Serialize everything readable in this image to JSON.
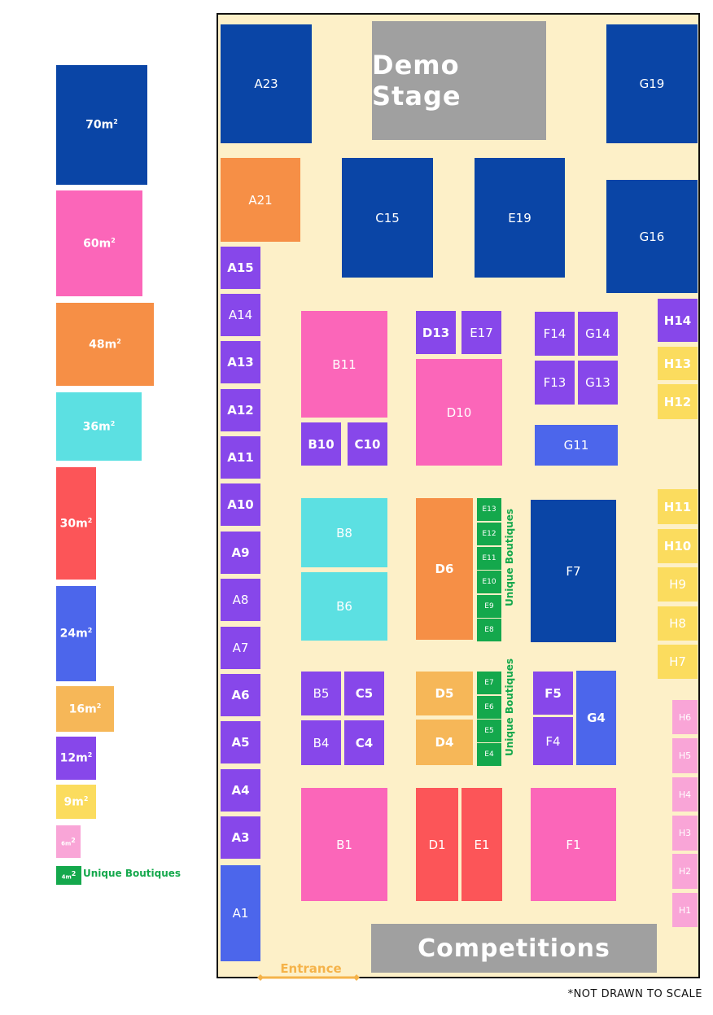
{
  "colors": {
    "navy": "#0a45a6",
    "orange": "#f68f46",
    "purple": "#8747ea",
    "pink": "#fb66b9",
    "cyan": "#5ce0e2",
    "red": "#fc5558",
    "blue": "#4c66eb",
    "lightorange": "#f6b758",
    "yellow": "#fbdc5e",
    "lightpink": "#f9a5d7",
    "green": "#14a84c",
    "gray": "#a0a0a0",
    "floor": "#fdf0c8"
  },
  "legend": [
    {
      "label": "70m",
      "sup": "2",
      "color": "#0a45a6"
    },
    {
      "label": "60m",
      "sup": "2",
      "color": "#fb66b9"
    },
    {
      "label": "48m",
      "sup": "2",
      "color": "#f68f46"
    },
    {
      "label": "36m",
      "sup": "2",
      "color": "#5ce0e2"
    },
    {
      "label": "30m",
      "sup": "2",
      "color": "#fc5558"
    },
    {
      "label": "24m",
      "sup": "2",
      "color": "#4c66eb"
    },
    {
      "label": "16m",
      "sup": "2",
      "color": "#f6b758"
    },
    {
      "label": "12m",
      "sup": "2",
      "color": "#8747ea"
    },
    {
      "label": "9m",
      "sup": "2",
      "color": "#fbdc5e"
    },
    {
      "label": "6m",
      "sup": "2",
      "color": "#f9a5d7"
    },
    {
      "label": "4m",
      "sup": "2",
      "color": "#14a84c"
    }
  ],
  "legend_boutique_label": "Unique Boutiques",
  "stages": {
    "demo": "Demo Stage",
    "competitions": "Competitions"
  },
  "boutique_labels": [
    "Unique Boutiques",
    "Unique Boutiques"
  ],
  "entrance": "Entrance",
  "scale_note": "*NOT DRAWN TO SCALE",
  "booths": [
    {
      "id": "A23",
      "color": "navy"
    },
    {
      "id": "G19",
      "color": "navy"
    },
    {
      "id": "A21",
      "color": "orange"
    },
    {
      "id": "C15",
      "color": "navy"
    },
    {
      "id": "E19",
      "color": "navy"
    },
    {
      "id": "G16",
      "color": "navy"
    },
    {
      "id": "A15",
      "color": "purple"
    },
    {
      "id": "A14",
      "color": "purple"
    },
    {
      "id": "A13",
      "color": "purple"
    },
    {
      "id": "A12",
      "color": "purple"
    },
    {
      "id": "A11",
      "color": "purple"
    },
    {
      "id": "A10",
      "color": "purple"
    },
    {
      "id": "A9",
      "color": "purple"
    },
    {
      "id": "A8",
      "color": "purple"
    },
    {
      "id": "A7",
      "color": "purple"
    },
    {
      "id": "A6",
      "color": "purple"
    },
    {
      "id": "A5",
      "color": "purple"
    },
    {
      "id": "A4",
      "color": "purple"
    },
    {
      "id": "A3",
      "color": "purple"
    },
    {
      "id": "A1",
      "color": "blue"
    },
    {
      "id": "B11",
      "color": "pink"
    },
    {
      "id": "B10",
      "color": "purple"
    },
    {
      "id": "C10",
      "color": "purple"
    },
    {
      "id": "D13",
      "color": "purple"
    },
    {
      "id": "E17",
      "color": "purple"
    },
    {
      "id": "D10",
      "color": "pink"
    },
    {
      "id": "F14",
      "color": "purple"
    },
    {
      "id": "G14",
      "color": "purple"
    },
    {
      "id": "F13",
      "color": "purple"
    },
    {
      "id": "G13",
      "color": "purple"
    },
    {
      "id": "G11",
      "color": "blue"
    },
    {
      "id": "H14",
      "color": "purple"
    },
    {
      "id": "H13",
      "color": "yellow"
    },
    {
      "id": "H12",
      "color": "yellow"
    },
    {
      "id": "B8",
      "color": "cyan"
    },
    {
      "id": "B6",
      "color": "cyan"
    },
    {
      "id": "D6",
      "color": "orange"
    },
    {
      "id": "E13",
      "color": "green"
    },
    {
      "id": "E12",
      "color": "green"
    },
    {
      "id": "E11",
      "color": "green"
    },
    {
      "id": "E10",
      "color": "green"
    },
    {
      "id": "E9",
      "color": "green"
    },
    {
      "id": "E8",
      "color": "green"
    },
    {
      "id": "F7",
      "color": "navy"
    },
    {
      "id": "H11",
      "color": "yellow"
    },
    {
      "id": "H10",
      "color": "yellow"
    },
    {
      "id": "H9",
      "color": "yellow"
    },
    {
      "id": "H8",
      "color": "yellow"
    },
    {
      "id": "H7",
      "color": "yellow"
    },
    {
      "id": "B5",
      "color": "purple"
    },
    {
      "id": "C5",
      "color": "purple"
    },
    {
      "id": "B4",
      "color": "purple"
    },
    {
      "id": "C4",
      "color": "purple"
    },
    {
      "id": "D5",
      "color": "lightorange"
    },
    {
      "id": "D4",
      "color": "lightorange"
    },
    {
      "id": "E7",
      "color": "green"
    },
    {
      "id": "E6",
      "color": "green"
    },
    {
      "id": "E5",
      "color": "green"
    },
    {
      "id": "E4",
      "color": "green"
    },
    {
      "id": "F5",
      "color": "purple"
    },
    {
      "id": "F4",
      "color": "purple"
    },
    {
      "id": "G4",
      "color": "blue"
    },
    {
      "id": "H6",
      "color": "lightpink"
    },
    {
      "id": "H5",
      "color": "lightpink"
    },
    {
      "id": "H4",
      "color": "lightpink"
    },
    {
      "id": "H3",
      "color": "lightpink"
    },
    {
      "id": "H2",
      "color": "lightpink"
    },
    {
      "id": "H1",
      "color": "lightpink"
    },
    {
      "id": "B1",
      "color": "pink"
    },
    {
      "id": "D1",
      "color": "red"
    },
    {
      "id": "E1",
      "color": "red"
    },
    {
      "id": "F1",
      "color": "pink"
    }
  ]
}
